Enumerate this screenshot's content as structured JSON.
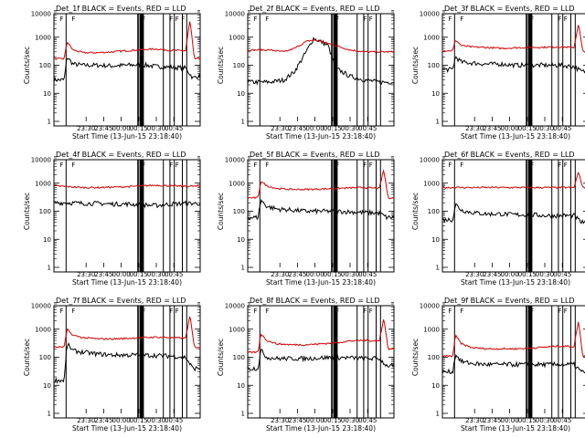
{
  "chart_data": [
    {
      "type": "line",
      "title": "Det_1f BLACK = Events, RED = LLD",
      "xlabel": "Start Time (13-Jun-15 23:18:40)",
      "ylabel": "Counts/sec",
      "yscale": "log",
      "ylim": [
        1,
        10000
      ],
      "yticks": [
        "10000",
        "1000",
        "100",
        "10",
        "1"
      ],
      "xticks": [
        "23:30",
        "23:45",
        "00:00",
        "00:15",
        "00:30",
        "00:45"
      ],
      "markers": [
        "F",
        "F",
        "F",
        "F",
        "F",
        "F"
      ],
      "series": [
        {
          "color": "#000000",
          "x": [
            0,
            0.07,
            0.09,
            0.13,
            0.2,
            0.3,
            0.4,
            0.5,
            0.6,
            0.7,
            0.8,
            0.9,
            0.95,
            0.98,
            1.0
          ],
          "values": [
            30,
            30,
            200,
            110,
            100,
            100,
            95,
            100,
            105,
            90,
            85,
            80,
            35,
            40,
            40
          ]
        },
        {
          "color": "#d40000",
          "x": [
            0,
            0.07,
            0.09,
            0.13,
            0.2,
            0.3,
            0.4,
            0.5,
            0.6,
            0.7,
            0.8,
            0.9,
            0.93,
            0.96,
            1.0
          ],
          "values": [
            170,
            170,
            700,
            350,
            280,
            280,
            300,
            330,
            360,
            380,
            340,
            330,
            4000,
            170,
            170
          ]
        }
      ]
    },
    {
      "type": "line",
      "title": "Det_2f BLACK = Events, RED = LLD",
      "xlabel": "Start Time (13-Jun-15 23:18:40)",
      "ylabel": "Counts/sec",
      "yscale": "log",
      "ylim": [
        1,
        10000
      ],
      "yticks": [
        "10000",
        "1000",
        "100",
        "10",
        "1"
      ],
      "xticks": [
        "23:30",
        "23:45",
        "00:00",
        "00:15",
        "00:30",
        "00:45"
      ],
      "markers": [
        "F",
        "F",
        "F",
        "F",
        "F"
      ],
      "series": [
        {
          "color": "#000000",
          "x": [
            0,
            0.15,
            0.25,
            0.32,
            0.4,
            0.45,
            0.5,
            0.55,
            0.6,
            0.7,
            0.8,
            0.9,
            1.0
          ],
          "values": [
            25,
            25,
            30,
            60,
            300,
            900,
            700,
            500,
            80,
            40,
            30,
            25,
            25
          ]
        },
        {
          "color": "#d40000",
          "x": [
            0,
            0.15,
            0.25,
            0.32,
            0.4,
            0.45,
            0.5,
            0.55,
            0.6,
            0.7,
            0.8,
            0.9,
            1.0
          ],
          "values": [
            350,
            350,
            300,
            400,
            700,
            800,
            700,
            600,
            500,
            350,
            300,
            300,
            300
          ]
        }
      ]
    },
    {
      "type": "line",
      "title": "Det_3f BLACK = Events, RED = LLD",
      "xlabel": "Start Time (13-Jun-15 23:18:40)",
      "ylabel": "Counts/sec",
      "yscale": "log",
      "ylim": [
        1,
        10000
      ],
      "yticks": [
        "10000",
        "1000",
        "100",
        "10",
        "1"
      ],
      "xticks": [
        "23:30",
        "23:45",
        "00:00",
        "00:15",
        "00:30",
        "00:45"
      ],
      "markers": [
        "F",
        "F",
        "F",
        "F",
        "F"
      ],
      "series": [
        {
          "color": "#000000",
          "x": [
            0,
            0.07,
            0.09,
            0.13,
            0.2,
            0.3,
            0.4,
            0.5,
            0.6,
            0.7,
            0.8,
            0.9,
            0.95,
            1.0
          ],
          "values": [
            70,
            70,
            200,
            130,
            120,
            110,
            110,
            100,
            100,
            100,
            100,
            90,
            60,
            60
          ]
        },
        {
          "color": "#d40000",
          "x": [
            0,
            0.07,
            0.09,
            0.13,
            0.2,
            0.3,
            0.4,
            0.5,
            0.6,
            0.7,
            0.8,
            0.9,
            0.93,
            0.96,
            1.0
          ],
          "values": [
            330,
            330,
            800,
            500,
            450,
            430,
            400,
            420,
            430,
            440,
            450,
            430,
            3000,
            300,
            300
          ]
        }
      ]
    },
    {
      "type": "line",
      "title": "Det_4f BLACK = Events, RED = LLD",
      "xlabel": "Start Time (13-Jun-15 23:18:40)",
      "ylabel": "Counts/sec",
      "yscale": "log",
      "ylim": [
        1,
        10000
      ],
      "yticks": [
        "10000",
        "1000",
        "100",
        "10",
        "1"
      ],
      "xticks": [
        "23:30",
        "23:45",
        "00:00",
        "00:15",
        "00:30",
        "00:45"
      ],
      "markers": [
        "F",
        "F",
        "F",
        "F",
        "F"
      ],
      "series": [
        {
          "color": "#000000",
          "x": [
            0,
            0.1,
            0.2,
            0.3,
            0.4,
            0.5,
            0.6,
            0.7,
            0.8,
            0.9,
            1.0
          ],
          "values": [
            200,
            200,
            190,
            190,
            180,
            180,
            170,
            160,
            180,
            190,
            190
          ]
        },
        {
          "color": "#d40000",
          "x": [
            0,
            0.1,
            0.2,
            0.3,
            0.4,
            0.5,
            0.6,
            0.7,
            0.8,
            0.9,
            1.0
          ],
          "values": [
            800,
            750,
            700,
            700,
            720,
            750,
            800,
            850,
            800,
            780,
            780
          ]
        }
      ]
    },
    {
      "type": "line",
      "title": "Det_5f BLACK = Events, RED = LLD",
      "xlabel": "Start Time (13-Jun-15 23:18:40)",
      "ylabel": "Counts/sec",
      "yscale": "log",
      "ylim": [
        1,
        10000
      ],
      "yticks": [
        "10000",
        "1000",
        "100",
        "10",
        "1"
      ],
      "xticks": [
        "23:30",
        "23:45",
        "00:00",
        "00:15",
        "00:30",
        "00:45"
      ],
      "markers": [
        "F",
        "F",
        "F",
        "F",
        "F"
      ],
      "series": [
        {
          "color": "#000000",
          "x": [
            0,
            0.07,
            0.09,
            0.13,
            0.2,
            0.3,
            0.4,
            0.5,
            0.6,
            0.7,
            0.8,
            0.9,
            0.95,
            1.0
          ],
          "values": [
            60,
            60,
            250,
            150,
            120,
            110,
            100,
            100,
            100,
            95,
            90,
            85,
            60,
            60
          ]
        },
        {
          "color": "#d40000",
          "x": [
            0,
            0.07,
            0.09,
            0.13,
            0.2,
            0.3,
            0.4,
            0.5,
            0.6,
            0.7,
            0.8,
            0.9,
            0.93,
            0.96,
            1.0
          ],
          "values": [
            300,
            300,
            1200,
            800,
            650,
            600,
            600,
            620,
            650,
            680,
            700,
            650,
            3000,
            300,
            300
          ]
        }
      ]
    },
    {
      "type": "line",
      "title": "Det_6f BLACK = Events, RED = LLD",
      "xlabel": "Start Time (13-Jun-15 23:18:40)",
      "ylabel": "Counts/sec",
      "yscale": "log",
      "ylim": [
        1,
        10000
      ],
      "yticks": [
        "10000",
        "1000",
        "100",
        "10",
        "1"
      ],
      "xticks": [
        "23:30",
        "23:45",
        "00:00",
        "00:15",
        "00:30",
        "00:45"
      ],
      "markers": [
        "F",
        "F",
        "F",
        "F",
        "F"
      ],
      "series": [
        {
          "color": "#000000",
          "x": [
            0,
            0.07,
            0.09,
            0.13,
            0.2,
            0.3,
            0.4,
            0.5,
            0.6,
            0.7,
            0.8,
            0.9,
            0.95,
            1.0
          ],
          "values": [
            50,
            50,
            180,
            110,
            90,
            80,
            80,
            75,
            75,
            70,
            70,
            70,
            40,
            40
          ]
        },
        {
          "color": "#d40000",
          "x": [
            0,
            0.1,
            0.2,
            0.3,
            0.4,
            0.5,
            0.6,
            0.7,
            0.8,
            0.9,
            0.93,
            0.96,
            1.0
          ],
          "values": [
            700,
            700,
            700,
            700,
            700,
            700,
            700,
            700,
            700,
            700,
            2500,
            700,
            700
          ]
        }
      ]
    },
    {
      "type": "line",
      "title": "Det_7f BLACK = Events, RED = LLD",
      "xlabel": "Start Time (13-Jun-15 23:18:40)",
      "ylabel": "Counts/sec",
      "yscale": "log",
      "ylim": [
        1,
        10000
      ],
      "yticks": [
        "10000",
        "1000",
        "100",
        "10",
        "1"
      ],
      "xticks": [
        "23:30",
        "23:45",
        "00:00",
        "00:15",
        "00:30",
        "00:45"
      ],
      "markers": [
        "F",
        "F",
        "F",
        "F",
        "F"
      ],
      "series": [
        {
          "color": "#000000",
          "x": [
            0,
            0.07,
            0.09,
            0.13,
            0.2,
            0.3,
            0.4,
            0.5,
            0.6,
            0.7,
            0.8,
            0.9,
            0.95,
            1.0
          ],
          "values": [
            15,
            15,
            300,
            170,
            150,
            130,
            120,
            120,
            120,
            115,
            110,
            100,
            40,
            40
          ]
        },
        {
          "color": "#d40000",
          "x": [
            0,
            0.07,
            0.09,
            0.13,
            0.2,
            0.3,
            0.4,
            0.5,
            0.6,
            0.7,
            0.8,
            0.9,
            0.93,
            0.96,
            1.0
          ],
          "values": [
            230,
            230,
            1000,
            600,
            500,
            450,
            450,
            470,
            500,
            520,
            500,
            480,
            3000,
            230,
            230
          ]
        }
      ]
    },
    {
      "type": "line",
      "title": "Det_8f BLACK = Events, RED = LLD",
      "xlabel": "Start Time (13-Jun-15 23:18:40)",
      "ylabel": "Counts/sec",
      "yscale": "log",
      "ylim": [
        1,
        10000
      ],
      "yticks": [
        "10000",
        "1000",
        "100",
        "10",
        "1"
      ],
      "xticks": [
        "23:30",
        "23:45",
        "00:00",
        "00:15",
        "00:30",
        "00:45"
      ],
      "markers": [
        "F",
        "F",
        "F",
        "F",
        "F"
      ],
      "series": [
        {
          "color": "#000000",
          "x": [
            0,
            0.07,
            0.09,
            0.13,
            0.2,
            0.3,
            0.4,
            0.5,
            0.6,
            0.7,
            0.8,
            0.9,
            0.95,
            1.0
          ],
          "values": [
            40,
            40,
            180,
            100,
            90,
            90,
            90,
            95,
            100,
            95,
            90,
            90,
            50,
            50
          ]
        },
        {
          "color": "#d40000",
          "x": [
            0,
            0.07,
            0.09,
            0.13,
            0.2,
            0.3,
            0.4,
            0.5,
            0.6,
            0.7,
            0.8,
            0.9,
            0.93,
            0.96,
            1.0
          ],
          "values": [
            150,
            150,
            700,
            400,
            300,
            280,
            280,
            300,
            330,
            380,
            400,
            380,
            2500,
            200,
            200
          ]
        }
      ]
    },
    {
      "type": "line",
      "title": "Det_9f BLACK = Events, RED = LLD",
      "xlabel": "Start Time (13-Jun-15 23:18:40)",
      "ylabel": "Counts/sec",
      "yscale": "log",
      "ylim": [
        1,
        10000
      ],
      "yticks": [
        "10000",
        "1000",
        "100",
        "10",
        "1"
      ],
      "xticks": [
        "23:30",
        "23:45",
        "00:00",
        "00:15",
        "00:30",
        "00:45"
      ],
      "markers": [
        "F",
        "F",
        "F",
        "F",
        "F"
      ],
      "series": [
        {
          "color": "#000000",
          "x": [
            0,
            0.07,
            0.09,
            0.13,
            0.2,
            0.3,
            0.4,
            0.5,
            0.6,
            0.7,
            0.8,
            0.9,
            0.95,
            1.0
          ],
          "values": [
            30,
            30,
            130,
            70,
            60,
            55,
            55,
            55,
            55,
            55,
            55,
            55,
            30,
            30
          ]
        },
        {
          "color": "#d40000",
          "x": [
            0,
            0.07,
            0.09,
            0.13,
            0.2,
            0.3,
            0.4,
            0.5,
            0.6,
            0.7,
            0.8,
            0.9,
            0.93,
            0.96,
            1.0
          ],
          "values": [
            110,
            110,
            600,
            300,
            220,
            200,
            200,
            200,
            210,
            230,
            250,
            240,
            2000,
            110,
            110
          ]
        }
      ]
    }
  ]
}
